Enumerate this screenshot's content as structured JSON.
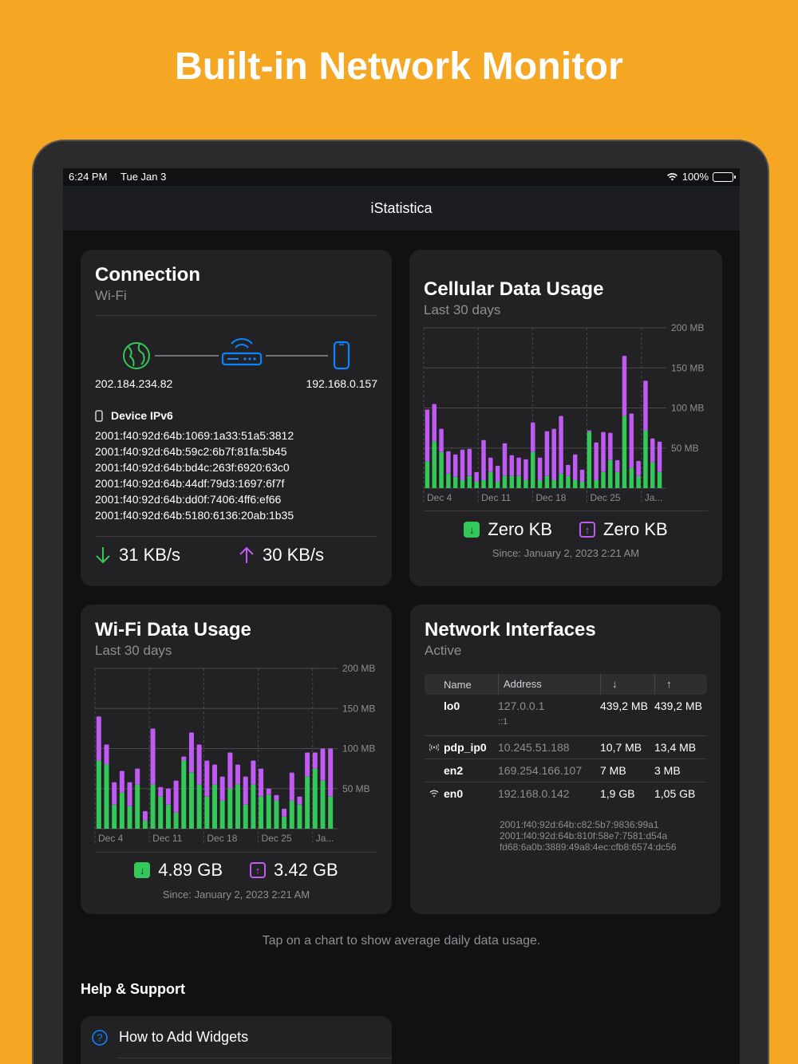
{
  "headline": "Built-in Network Monitor",
  "status": {
    "time": "6:24 PM",
    "date": "Tue Jan 3",
    "battery": "100%"
  },
  "nav": {
    "title": "iStatistica"
  },
  "connection": {
    "title": "Connection",
    "subtitle": "Wi-Fi",
    "public_ip": "202.184.234.82",
    "local_ip": "192.168.0.157",
    "ipv6_label": "Device IPv6",
    "ipv6": [
      "2001:f40:92d:64b:1069:1a33:51a5:3812",
      "2001:f40:92d:64b:59c2:6b7f:81fa:5b45",
      "2001:f40:92d:64b:bd4c:263f:6920:63c0",
      "2001:f40:92d:64b:44df:79d3:1697:6f7f",
      "2001:f40:92d:64b:dd0f:7406:4ff6:ef66",
      "2001:f40:92d:64b:5180:6136:20ab:1b35"
    ],
    "down_rate": "31 KB/s",
    "up_rate": "30 KB/s"
  },
  "cellular": {
    "title": "Cellular Data Usage",
    "subtitle": "Last 30 days",
    "down_total": "Zero KB",
    "up_total": "Zero KB",
    "since": "Since: January 2, 2023 2:21 AM"
  },
  "wifi": {
    "title": "Wi-Fi Data Usage",
    "subtitle": "Last 30 days",
    "down_total": "4.89 GB",
    "up_total": "3.42 GB",
    "since": "Since: January 2, 2023 2:21 AM"
  },
  "interfaces": {
    "title": "Network Interfaces",
    "subtitle": "Active",
    "headers": {
      "name": "Name",
      "address": "Address",
      "down": "↓",
      "up": "↑"
    },
    "rows": [
      {
        "name": "lo0",
        "icon": "",
        "address": "127.0.0.1",
        "down": "439,2 MB",
        "up": "439,2 MB",
        "extra": [
          "::1"
        ]
      },
      {
        "name": "pdp_ip0",
        "icon": "cellular-icon",
        "address": "10.245.51.188",
        "down": "10,7 MB",
        "up": "13,4 MB",
        "extra": []
      },
      {
        "name": "en2",
        "icon": "",
        "address": "169.254.166.107",
        "down": "7 MB",
        "up": "3 MB",
        "extra": []
      },
      {
        "name": "en0",
        "icon": "wifi-icon",
        "address": "192.168.0.142",
        "down": "1,9 GB",
        "up": "1,05 GB",
        "extra": [
          "2001:f40:92d:64b:c82:5b7:9836:99a1",
          "2001:f40:92d:64b:810f:58e7:7581:d54a",
          "fd68:6a0b:3889:49a8:4ec:cfb8:6574:dc56"
        ]
      }
    ]
  },
  "tap_note": "Tap on a chart to show average daily data usage.",
  "help": {
    "heading": "Help & Support",
    "item1": "How to Add Widgets"
  },
  "colors": {
    "download": "#34c759",
    "upload": "#bf5af2",
    "accent": "#0a84ff",
    "background": "#f5a623"
  },
  "chart_data": [
    {
      "type": "bar",
      "title": "Cellular Data Usage",
      "subtitle": "Last 30 days",
      "ylabel": "",
      "yunit": "MB",
      "ylim": [
        0,
        200
      ],
      "yticks": [
        "200 MB",
        "150 MB",
        "100 MB",
        "50 MB"
      ],
      "ytick_values": [
        200,
        150,
        100,
        50
      ],
      "xticks": [
        "Dec 4",
        "Dec 11",
        "Dec 18",
        "Dec 25",
        "Ja..."
      ],
      "stacked": true,
      "series": [
        {
          "name": "Download",
          "values": [
            33,
            58,
            45,
            18,
            14,
            10,
            15,
            8,
            10,
            20,
            8,
            15,
            15,
            15,
            10,
            45,
            10,
            15,
            10,
            18,
            15,
            10,
            8,
            70,
            10,
            20,
            35,
            20,
            90,
            25,
            15,
            72,
            32,
            20
          ]
        },
        {
          "name": "Upload",
          "values": [
            65,
            47,
            29,
            28,
            28,
            38,
            34,
            12,
            50,
            18,
            20,
            41,
            26,
            23,
            26,
            37,
            28,
            56,
            64,
            72,
            14,
            32,
            15,
            2,
            47,
            50,
            34,
            15,
            75,
            68,
            19,
            62,
            30,
            38
          ]
        }
      ]
    },
    {
      "type": "bar",
      "title": "Wi-Fi Data Usage",
      "subtitle": "Last 30 days",
      "ylabel": "",
      "yunit": "MB",
      "ylim": [
        0,
        200
      ],
      "yticks": [
        "200 MB",
        "150 MB",
        "100 MB",
        "50 MB"
      ],
      "ytick_values": [
        200,
        150,
        100,
        50
      ],
      "xticks": [
        "Dec 4",
        "Dec 11",
        "Dec 18",
        "Dec 25",
        "Ja..."
      ],
      "stacked": true,
      "series": [
        {
          "name": "Download",
          "values": [
            85,
            80,
            30,
            45,
            28,
            55,
            10,
            55,
            40,
            30,
            20,
            85,
            70,
            55,
            40,
            55,
            35,
            50,
            55,
            30,
            55,
            40,
            42,
            35,
            15,
            35,
            30,
            65,
            75,
            60,
            40
          ]
        },
        {
          "name": "Upload",
          "values": [
            55,
            25,
            28,
            27,
            30,
            20,
            12,
            70,
            12,
            20,
            40,
            5,
            50,
            50,
            45,
            25,
            30,
            45,
            25,
            35,
            30,
            35,
            8,
            7,
            10,
            35,
            10,
            30,
            20,
            40,
            60
          ]
        }
      ]
    }
  ]
}
